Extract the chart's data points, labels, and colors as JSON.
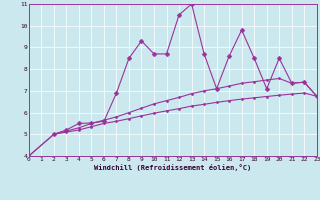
{
  "xlabel": "Windchill (Refroidissement éolien,°C)",
  "background_color": "#cce8ef",
  "line_color": "#993399",
  "grid_color": "#ffffff",
  "xmin": 0,
  "xmax": 23,
  "ymin": 4,
  "ymax": 11,
  "series": [
    {
      "x": [
        0,
        2,
        3,
        4,
        5,
        6,
        7,
        8,
        9,
        10,
        11,
        12,
        13,
        14,
        15,
        16,
        17,
        18,
        19,
        20,
        21,
        22,
        23
      ],
      "y": [
        4.0,
        5.0,
        5.1,
        5.2,
        5.35,
        5.5,
        5.6,
        5.72,
        5.85,
        5.97,
        6.08,
        6.18,
        6.3,
        6.38,
        6.47,
        6.55,
        6.62,
        6.68,
        6.74,
        6.8,
        6.85,
        6.9,
        6.75
      ],
      "marker": "D",
      "markersize": 1.5,
      "linewidth": 0.8
    },
    {
      "x": [
        0,
        2,
        3,
        4,
        5,
        6,
        7,
        8,
        9,
        10,
        11,
        12,
        13,
        14,
        15,
        16,
        17,
        18,
        19,
        20,
        21,
        22,
        23
      ],
      "y": [
        4.0,
        5.0,
        5.15,
        5.3,
        5.5,
        5.65,
        5.8,
        6.0,
        6.2,
        6.4,
        6.55,
        6.7,
        6.87,
        7.0,
        7.1,
        7.22,
        7.35,
        7.42,
        7.5,
        7.57,
        7.35,
        7.4,
        6.75
      ],
      "marker": "D",
      "markersize": 1.5,
      "linewidth": 0.8
    },
    {
      "x": [
        2,
        3,
        4,
        5,
        6,
        7,
        8,
        9,
        10,
        11,
        12,
        13,
        14,
        15,
        16,
        17,
        18,
        19,
        20,
        21,
        22,
        23
      ],
      "y": [
        5.0,
        5.2,
        5.5,
        5.52,
        5.6,
        6.9,
        8.5,
        9.3,
        8.7,
        8.7,
        10.5,
        11.0,
        8.7,
        7.1,
        8.6,
        9.8,
        8.5,
        7.1,
        8.5,
        7.35,
        7.4,
        6.75
      ],
      "marker": "D",
      "markersize": 2.5,
      "linewidth": 0.8
    }
  ]
}
